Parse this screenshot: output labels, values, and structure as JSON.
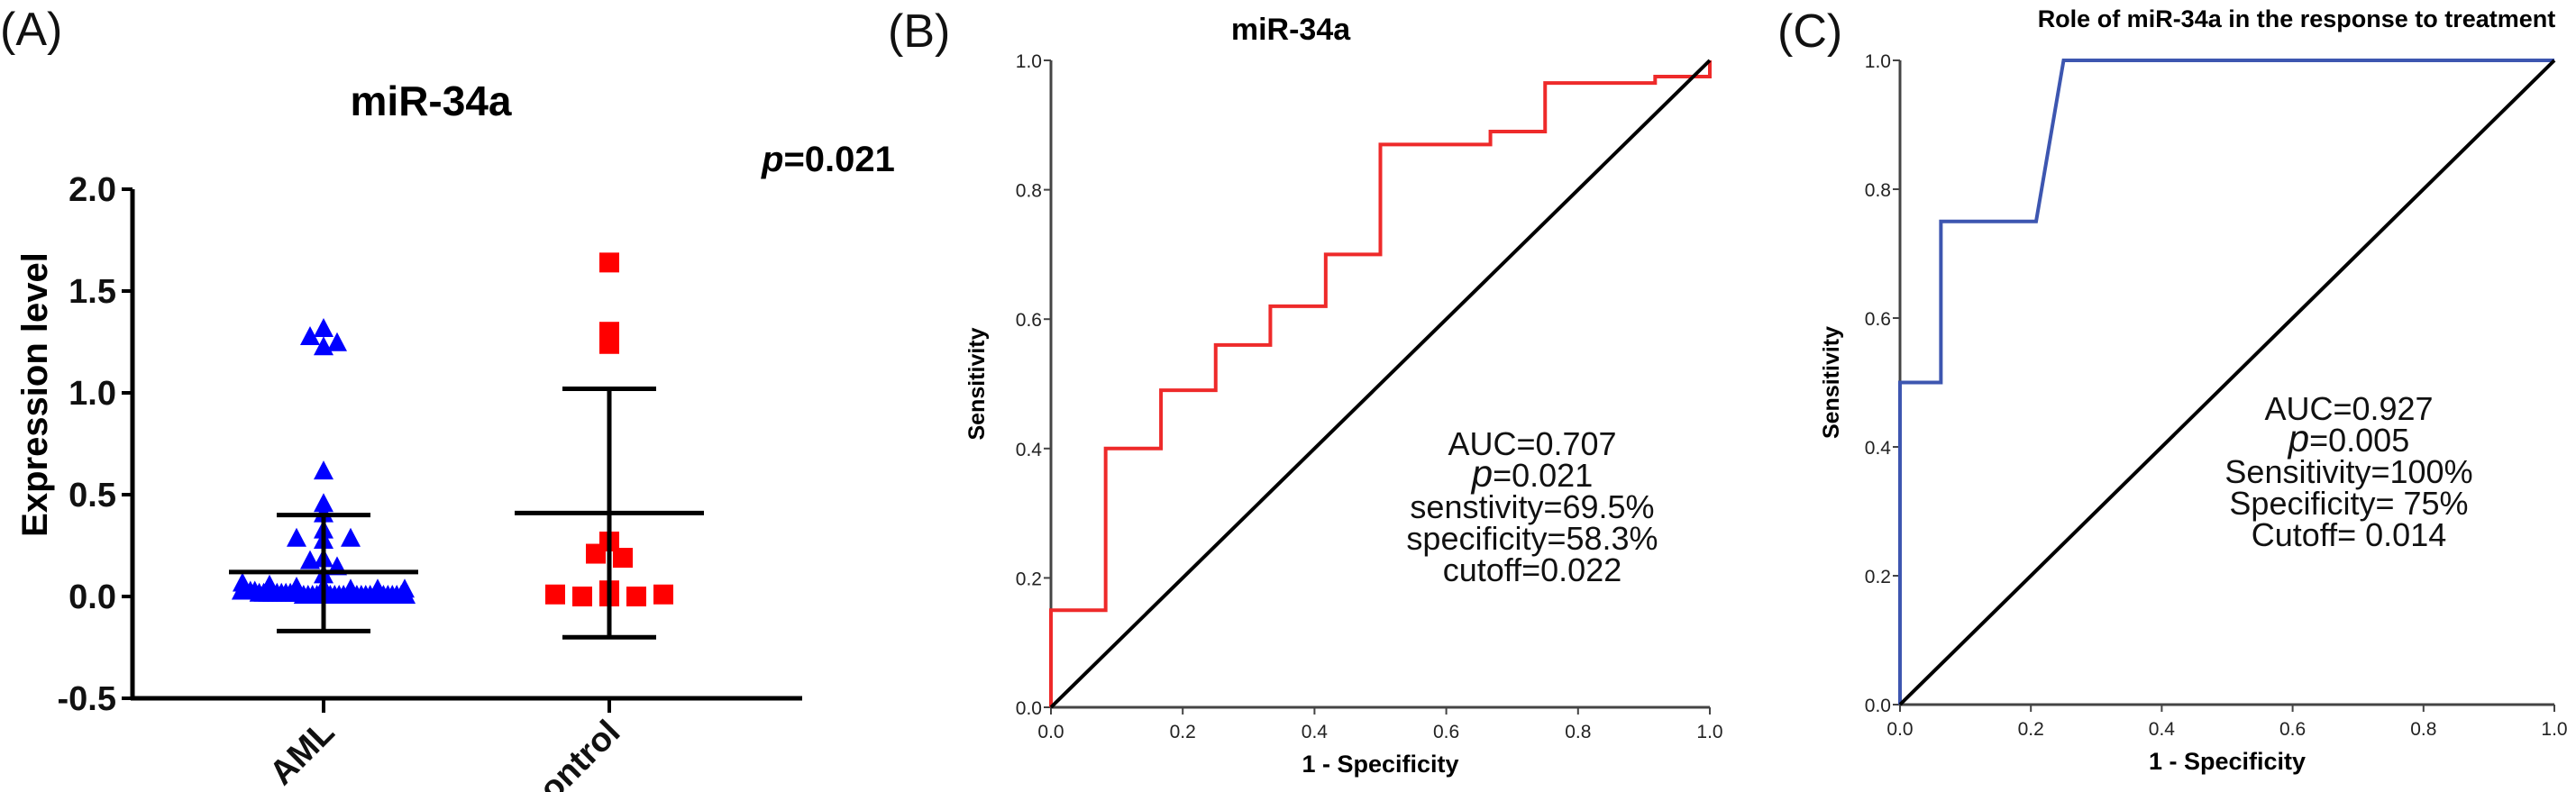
{
  "panels": [
    {
      "label": "(A)"
    },
    {
      "label": "(B)"
    },
    {
      "label": "(C)"
    }
  ],
  "chart_data": [
    {
      "type": "scatter",
      "title": "miR-34a",
      "ylabel": "Expression level",
      "xlabel": "",
      "ylim": [
        -0.5,
        2.0
      ],
      "yticks": [
        "2.0",
        "1.5",
        "1.0",
        "0.5",
        "0.0",
        "-0.5"
      ],
      "categories": [
        "AML",
        "control"
      ],
      "annotation": {
        "p_symbol": "p",
        "p_text": "=0.021"
      },
      "grid": false,
      "groups": [
        {
          "name": "AML",
          "marker": "triangle",
          "color": "#0000ff",
          "values": [
            1.27,
            1.22,
            1.24,
            1.31,
            0.61,
            0.45,
            0.4,
            0.28,
            0.32,
            0.27,
            0.28,
            0.18,
            0.17,
            0.14,
            0.1,
            0.06,
            0.05,
            0.04,
            0.04,
            0.03,
            0.03,
            0.03,
            0.02,
            0.02,
            0.02,
            0.02,
            0.01,
            0.01,
            0.01,
            0.01,
            0.01,
            0.01,
            0.01,
            0.01,
            0.01,
            0.01,
            0.0,
            0.0,
            0.0,
            0.0,
            0.0,
            0.0,
            0.0,
            0.0,
            0.0,
            0.0,
            0.0,
            0.0,
            0.0,
            0.0,
            0.0,
            0.0,
            0.0,
            0.0,
            0.0,
            0.0,
            0.0,
            0.0,
            0.0,
            0.0
          ],
          "mean": 0.12,
          "sd_upper": 0.4,
          "sd_lower": -0.17
        },
        {
          "name": "control",
          "marker": "square",
          "color": "#ff0000",
          "values": [
            1.64,
            1.24,
            1.3,
            0.21,
            0.19,
            0.27,
            0.01,
            0.0,
            0.0,
            0.0,
            0.01,
            0.03
          ],
          "mean": 0.41,
          "sd_upper": 1.02,
          "sd_lower": -0.2
        }
      ]
    },
    {
      "type": "line",
      "title": "miR-34a",
      "xlabel": "1 - Specificity",
      "ylabel": "Sensitivity",
      "xlim": [
        0,
        1
      ],
      "ylim": [
        0,
        1
      ],
      "xticks": [
        "0.0",
        "0.2",
        "0.4",
        "0.6",
        "0.8",
        "1.0"
      ],
      "yticks": [
        "0.0",
        "0.2",
        "0.4",
        "0.6",
        "0.8",
        "1.0"
      ],
      "grid": false,
      "series": [
        {
          "color": "#ee2a2a",
          "x": [
            0,
            0,
            0.083,
            0.083,
            0.167,
            0.167,
            0.25,
            0.25,
            0.333,
            0.333,
            0.417,
            0.417,
            0.5,
            0.5,
            0.667,
            0.667,
            0.75,
            0.75,
            0.917,
            0.917,
            1.0,
            1.0
          ],
          "y": [
            0,
            0.15,
            0.15,
            0.4,
            0.4,
            0.49,
            0.49,
            0.56,
            0.56,
            0.62,
            0.62,
            0.7,
            0.7,
            0.87,
            0.87,
            0.89,
            0.89,
            0.965,
            0.965,
            0.975,
            0.975,
            1.0
          ]
        },
        {
          "color": "#000000",
          "x": [
            0,
            1
          ],
          "y": [
            0,
            1
          ]
        }
      ],
      "annotation": {
        "lines": [
          "AUC=0.707",
          "=0.021",
          "senstivity=69.5%",
          "specificity=58.3%",
          "cutoff=0.022"
        ],
        "p_symbol": "p"
      }
    },
    {
      "type": "line",
      "title": "Role of miR-34a in the response to treatment",
      "xlabel": "1 - Specificity",
      "ylabel": "Sensitivity",
      "xlim": [
        0,
        1
      ],
      "ylim": [
        0,
        1
      ],
      "xticks": [
        "0.0",
        "0.2",
        "0.4",
        "0.6",
        "0.8",
        "1.0"
      ],
      "yticks": [
        "0.0",
        "0.2",
        "0.4",
        "0.6",
        "0.8",
        "1.0"
      ],
      "grid": false,
      "series": [
        {
          "color": "#3d56b0",
          "x": [
            0,
            0,
            0.0625,
            0.0625,
            0.208,
            0.25,
            1.0
          ],
          "y": [
            0,
            0.5,
            0.5,
            0.75,
            0.75,
            1.0,
            1.0
          ]
        },
        {
          "color": "#000000",
          "x": [
            0,
            1
          ],
          "y": [
            0,
            1
          ]
        }
      ],
      "annotation": {
        "lines": [
          "AUC=0.927",
          "=0.005",
          "Sensitivity=100%",
          "Specificity= 75%",
          "Cutoff= 0.014"
        ],
        "p_symbol": "p"
      }
    }
  ]
}
